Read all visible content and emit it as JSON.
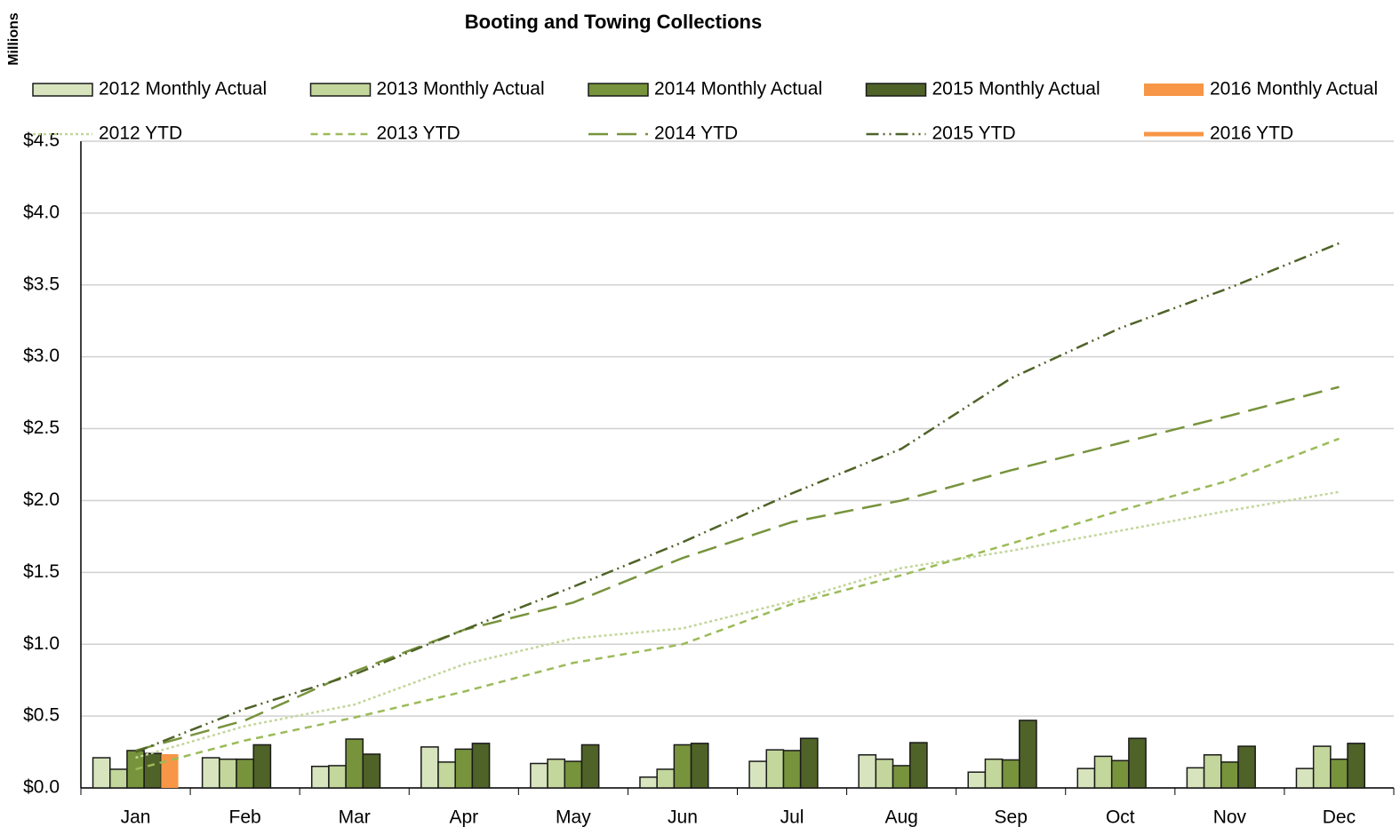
{
  "chart_data": {
    "type": "combo",
    "title": "Booting and Towing Collections",
    "y_label": "Millions",
    "categories": [
      "Jan",
      "Feb",
      "Mar",
      "Apr",
      "May",
      "Jun",
      "Jul",
      "Aug",
      "Sep",
      "Oct",
      "Nov",
      "Dec"
    ],
    "ylim": [
      0,
      4.5
    ],
    "yticks": [
      {
        "value": 0,
        "label": "$0.0"
      },
      {
        "value": 0.5,
        "label": "$0.5"
      },
      {
        "value": 1,
        "label": "$1.0"
      },
      {
        "value": 1.5,
        "label": "$1.5"
      },
      {
        "value": 2,
        "label": "$2.0"
      },
      {
        "value": 2.5,
        "label": "$2.5"
      },
      {
        "value": 3,
        "label": "$3.0"
      },
      {
        "value": 3.5,
        "label": "$3.5"
      },
      {
        "value": 4,
        "label": "$4.0"
      },
      {
        "value": 4.5,
        "label": "$4.5"
      }
    ],
    "grid": true,
    "series": [
      {
        "name": "2012 Monthly Actual",
        "type": "bar",
        "color": "#d7e4bd",
        "values": [
          0.21,
          0.21,
          0.15,
          0.285,
          0.17,
          0.075,
          0.185,
          0.23,
          0.11,
          0.135,
          0.14,
          0.135
        ]
      },
      {
        "name": "2013 Monthly Actual",
        "type": "bar",
        "color": "#c3d69b",
        "values": [
          0.13,
          0.2,
          0.155,
          0.18,
          0.2,
          0.13,
          0.265,
          0.2,
          0.2,
          0.22,
          0.23,
          0.29
        ]
      },
      {
        "name": "2014 Monthly Actual",
        "type": "bar",
        "color": "#77933c",
        "values": [
          0.26,
          0.2,
          0.34,
          0.27,
          0.185,
          0.3,
          0.26,
          0.155,
          0.195,
          0.19,
          0.18,
          0.2
        ]
      },
      {
        "name": "2015 Monthly Actual",
        "type": "bar",
        "color": "#4f6228",
        "values": [
          0.24,
          0.3,
          0.235,
          0.31,
          0.3,
          0.31,
          0.345,
          0.315,
          0.47,
          0.345,
          0.29,
          0.31
        ]
      },
      {
        "name": "2016 Monthly Actual",
        "type": "bar",
        "color": "#f79646",
        "values": [
          0.235,
          null,
          null,
          null,
          null,
          null,
          null,
          null,
          null,
          null,
          null,
          null
        ]
      },
      {
        "name": "2012 YTD",
        "type": "line",
        "style": "dotted",
        "color": "#c3d69b",
        "values": [
          0.21,
          0.43,
          0.58,
          0.86,
          1.04,
          1.11,
          1.3,
          1.53,
          1.65,
          1.79,
          1.93,
          2.06
        ]
      },
      {
        "name": "2013 YTD",
        "type": "line",
        "style": "dashed",
        "color": "#9bbb59",
        "values": [
          0.13,
          0.33,
          0.49,
          0.67,
          0.87,
          1.0,
          1.28,
          1.48,
          1.7,
          1.93,
          2.14,
          2.43
        ]
      },
      {
        "name": "2014 YTD",
        "type": "line",
        "style": "long-dash",
        "color": "#77933c",
        "values": [
          0.26,
          0.47,
          0.81,
          1.1,
          1.29,
          1.6,
          1.85,
          2.0,
          2.21,
          2.4,
          2.59,
          2.79
        ]
      },
      {
        "name": "2015 YTD",
        "type": "line",
        "style": "dash-dot-dot",
        "color": "#4f6228",
        "values": [
          0.25,
          0.55,
          0.79,
          1.1,
          1.4,
          1.71,
          2.05,
          2.36,
          2.85,
          3.2,
          3.48,
          3.79
        ]
      },
      {
        "name": "2016 YTD",
        "type": "line",
        "style": "solid",
        "color": "#f79646",
        "values": [
          0.235,
          null,
          null,
          null,
          null,
          null,
          null,
          null,
          null,
          null,
          null,
          null
        ]
      }
    ]
  }
}
